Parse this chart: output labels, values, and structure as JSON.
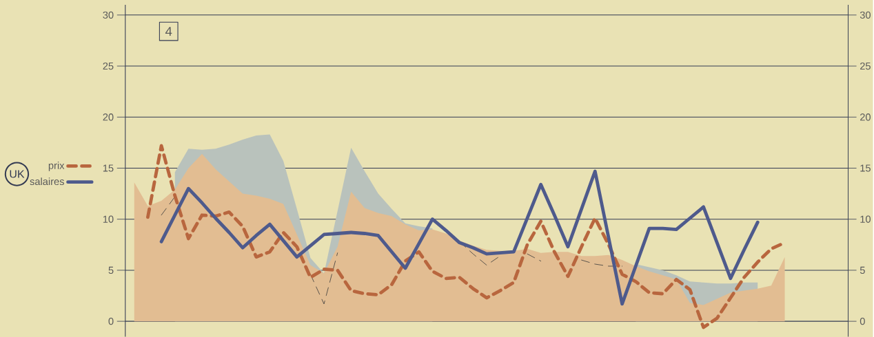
{
  "chart_data": {
    "type": "line",
    "legend_title": "UK",
    "annotations": [
      "4"
    ],
    "categories": [
      null,
      null,
      null,
      null,
      null,
      null,
      null,
      null,
      null,
      null,
      null,
      null,
      null,
      null,
      null,
      null,
      null,
      null,
      null,
      null,
      null,
      null,
      null,
      null,
      null,
      null,
      null,
      null,
      null,
      null,
      null,
      null,
      null,
      null,
      null,
      null,
      null,
      null,
      null,
      null,
      null,
      null,
      null,
      null,
      null,
      null,
      null,
      null,
      null
    ],
    "ylim": [
      -1.5,
      31
    ],
    "yticks": [
      0,
      5,
      10,
      15,
      20,
      25,
      30
    ],
    "y2lim": [
      -1.5,
      31
    ],
    "y2ticks": [
      0,
      5,
      10,
      15,
      20,
      25,
      30
    ],
    "grid": true,
    "legend": "left",
    "series": [
      {
        "type": "area",
        "color": "#b9c2bc",
        "values": [
          null,
          null,
          null,
          14.6,
          16.9,
          16.8,
          16.9,
          17.3,
          17.8,
          18.2,
          18.3,
          15.7,
          11.0,
          6.2,
          4.7,
          10.8,
          17.0,
          14.7,
          12.5,
          11.0,
          9.6,
          9.3,
          9.1,
          null,
          null,
          null,
          null,
          null,
          null,
          null,
          null,
          null,
          null,
          null,
          null,
          null,
          null,
          5.6,
          5.3,
          5.0,
          4.5,
          3.9,
          3.8,
          3.7,
          3.7,
          3.8,
          3.8,
          null,
          null
        ]
      },
      {
        "type": "area",
        "color": "#e2bd92",
        "values": [
          13.6,
          11.3,
          11.8,
          12.9,
          15.0,
          16.4,
          14.9,
          13.7,
          12.5,
          12.3,
          12.0,
          11.5,
          8.5,
          5.5,
          4.7,
          7.3,
          12.7,
          11.1,
          10.6,
          10.3,
          9.5,
          8.9,
          9.0,
          8.6,
          7.9,
          7.4,
          7.0,
          6.9,
          6.9,
          7.1,
          6.7,
          6.8,
          6.8,
          6.4,
          6.4,
          6.5,
          6.0,
          5.4,
          4.9,
          4.5,
          4.1,
          1.8,
          1.6,
          2.2,
          2.8,
          3.0,
          3.2,
          3.5,
          6.3
        ]
      },
      {
        "color": "#3a3a3a",
        "line_style": "dashed",
        "values": [
          null,
          null,
          10.4,
          12.2,
          null,
          null,
          null,
          null,
          null,
          null,
          null,
          null,
          null,
          4.6,
          1.7,
          6.7,
          null,
          null,
          null,
          null,
          null,
          null,
          null,
          null,
          7.8,
          6.6,
          5.5,
          6.4,
          null,
          6.6,
          5.9,
          null,
          null,
          6.0,
          5.6,
          5.4,
          5.4,
          null,
          null,
          null,
          null,
          null,
          null,
          null,
          null,
          null,
          null,
          null,
          null
        ]
      },
      {
        "name": "prix",
        "color": "#b8663e",
        "line_style": "dashed",
        "values": [
          null,
          10.2,
          17.2,
          12.3,
          8.1,
          10.4,
          10.3,
          10.7,
          9.3,
          6.3,
          6.8,
          8.7,
          7.3,
          4.3,
          5.1,
          5.0,
          3.0,
          2.7,
          2.6,
          3.6,
          5.9,
          6.8,
          4.9,
          4.2,
          4.3,
          3.2,
          2.3,
          3.0,
          3.8,
          7.5,
          9.8,
          6.8,
          4.4,
          7.3,
          10.1,
          7.5,
          4.6,
          3.9,
          2.8,
          2.7,
          4.1,
          3.1,
          -0.6,
          0.3,
          2.3,
          4.3,
          5.8,
          7.1,
          7.7
        ]
      },
      {
        "name": "salaires",
        "color": "#4e5a8c",
        "line_style": "solid",
        "values": [
          null,
          null,
          7.8,
          10.4,
          13.0,
          11.6,
          10.1,
          8.7,
          7.2,
          8.4,
          9.5,
          7.9,
          6.3,
          7.4,
          8.5,
          8.6,
          8.7,
          8.6,
          8.4,
          6.8,
          5.2,
          7.6,
          10.0,
          8.9,
          7.7,
          7.2,
          6.6,
          6.7,
          6.8,
          10.1,
          13.4,
          10.4,
          7.3,
          11.0,
          14.7,
          8.2,
          1.7,
          5.4,
          9.1,
          9.1,
          9.0,
          10.1,
          11.2,
          7.7,
          4.2,
          7.0,
          9.7,
          null,
          null
        ]
      }
    ]
  }
}
